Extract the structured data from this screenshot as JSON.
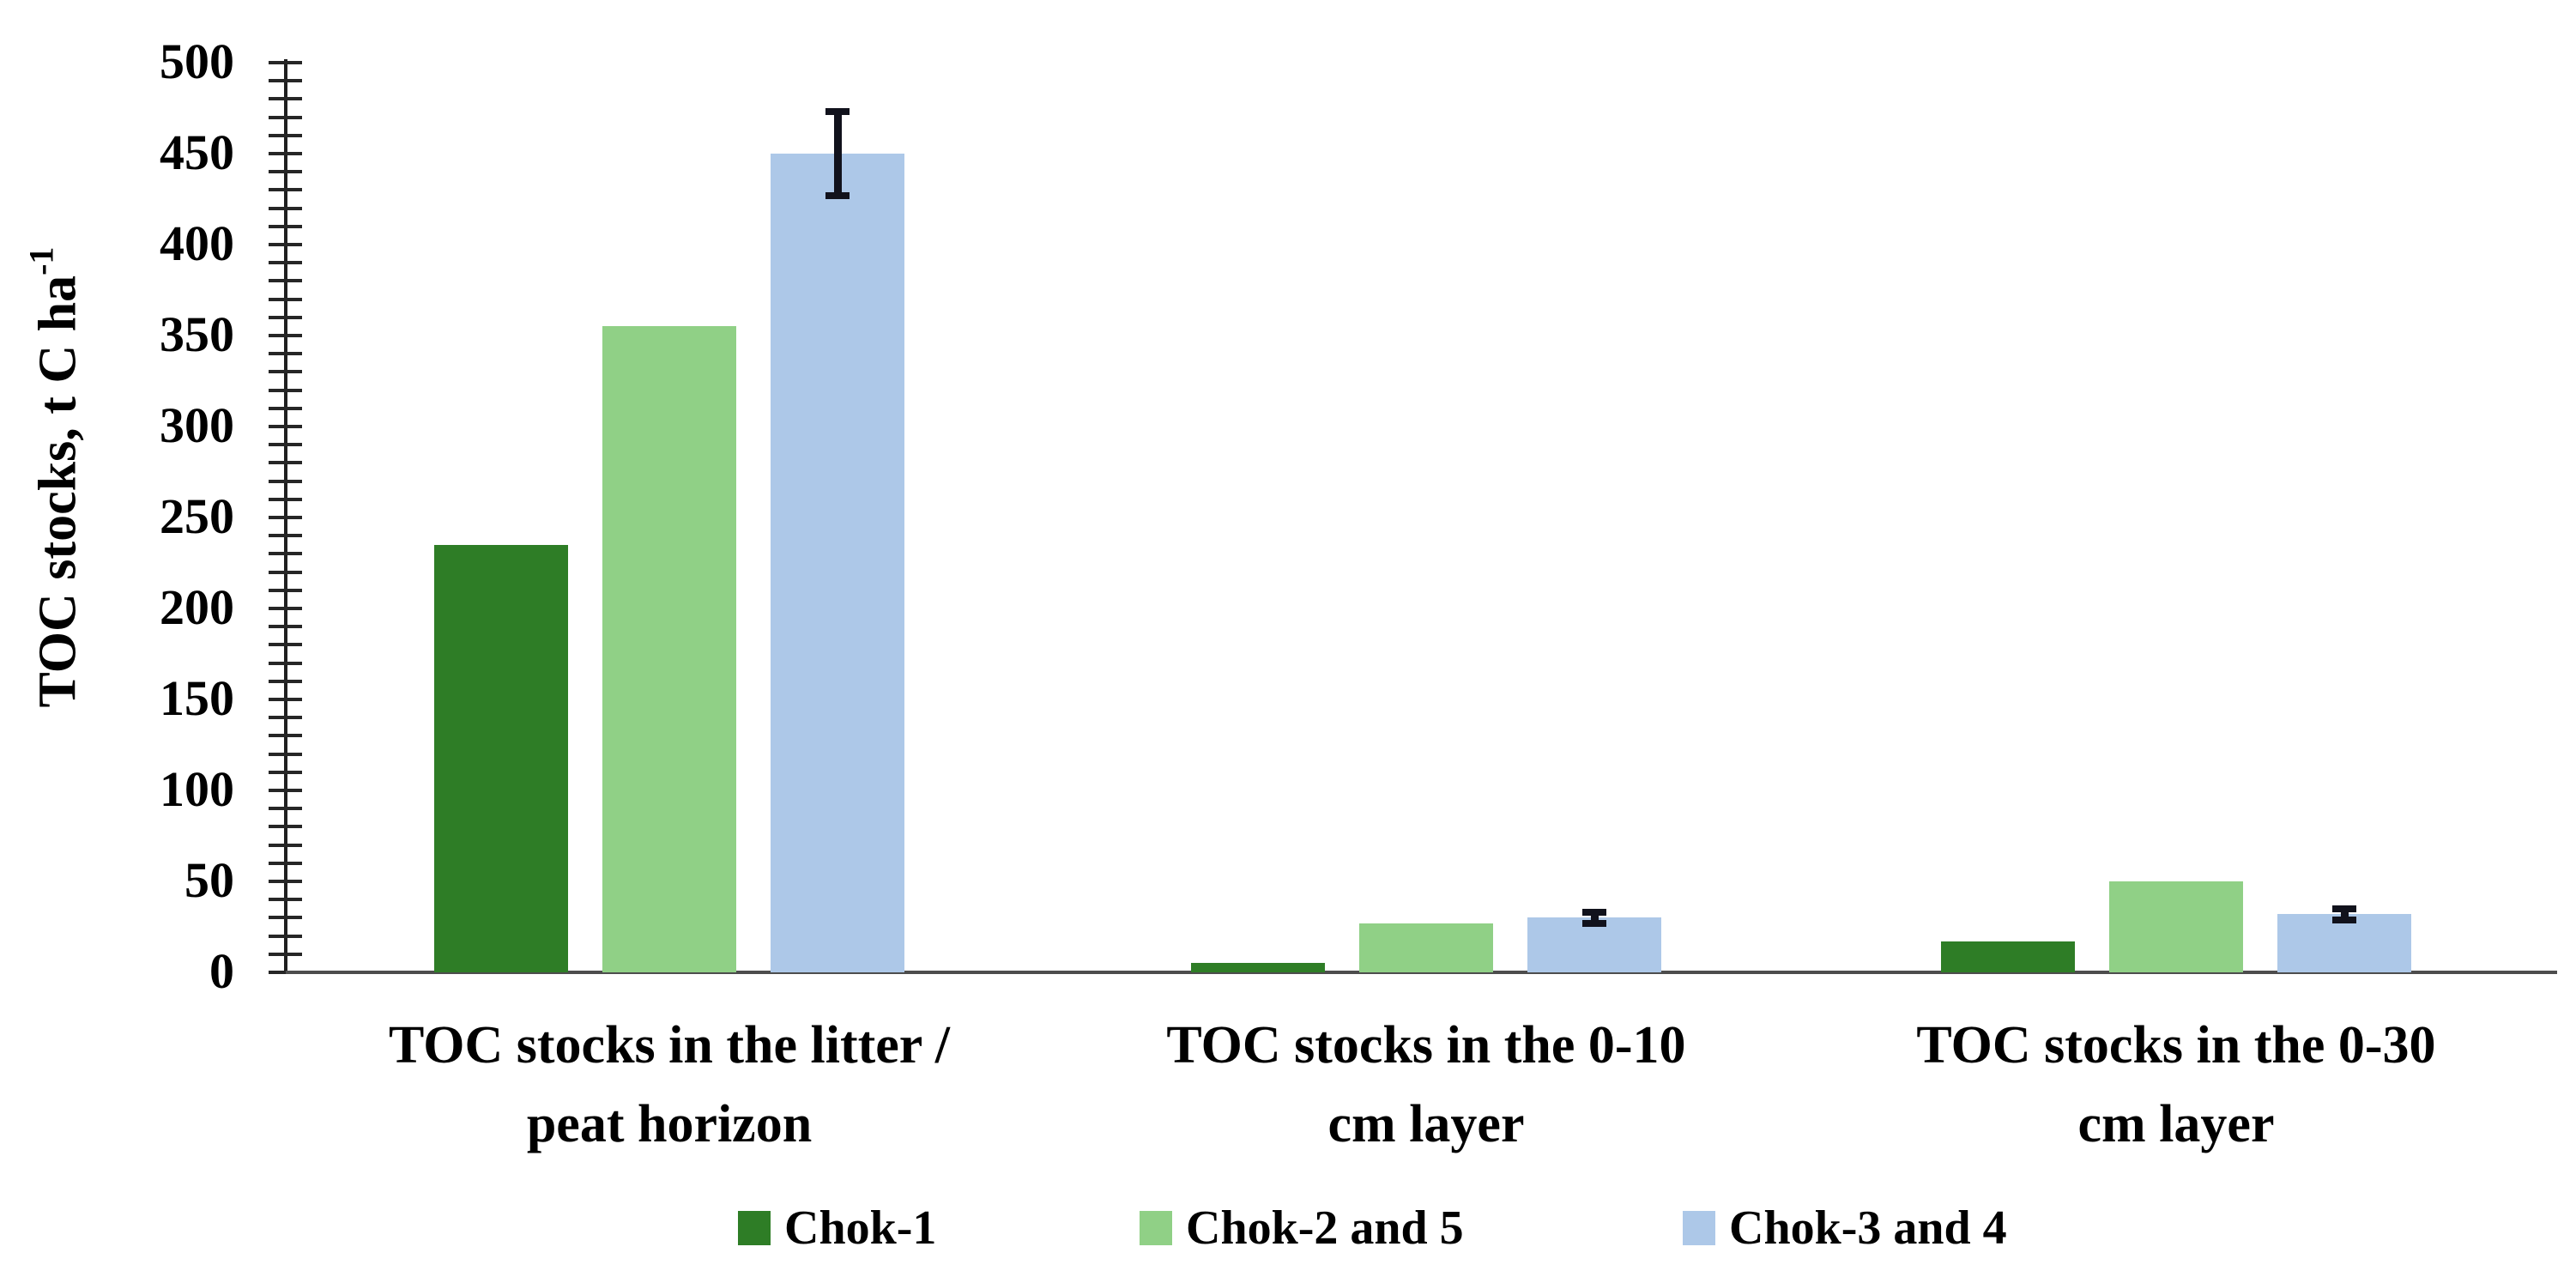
{
  "chart_data": {
    "type": "bar",
    "title": "",
    "ylabel": "TOC stocks, t C ha-1",
    "ylabel_main": "TOC stocks, t C ha",
    "ylabel_sup": "-1",
    "xlabel": "",
    "ylim": [
      0,
      500
    ],
    "ytick_major_step": 50,
    "ytick_minor_step": 10,
    "ytick_labels": [
      "0",
      "50",
      "100",
      "150",
      "200",
      "250",
      "300",
      "350",
      "400",
      "450",
      "500"
    ],
    "grid": false,
    "legend_position": "bottom",
    "categories": [
      "TOC stocks in the litter / peat horizon",
      "TOC stocks in the 0-10 cm layer",
      "TOC stocks in the 0-30 cm layer"
    ],
    "category_label_lines": [
      [
        "TOC stocks in the litter /",
        "peat horizon"
      ],
      [
        "TOC stocks in the 0-10",
        "cm layer"
      ],
      [
        "TOC stocks in the 0-30",
        "cm layer"
      ]
    ],
    "series": [
      {
        "name": "Chok-1",
        "color": "#2e7d26",
        "values": [
          235,
          5,
          17
        ],
        "errors": [
          null,
          null,
          null
        ]
      },
      {
        "name": "Chok-2 and 5",
        "color": "#90d086",
        "values": [
          355,
          27,
          50
        ],
        "errors": [
          null,
          null,
          null
        ]
      },
      {
        "name": "Chok-3 and 4",
        "color": "#adc8e8",
        "values": [
          450,
          30,
          32
        ],
        "errors": [
          23,
          3,
          3
        ]
      }
    ],
    "error_bar_color": "#11121c",
    "axis_color": "#1f1f1f",
    "baseline_color": "#4d4d4d"
  }
}
